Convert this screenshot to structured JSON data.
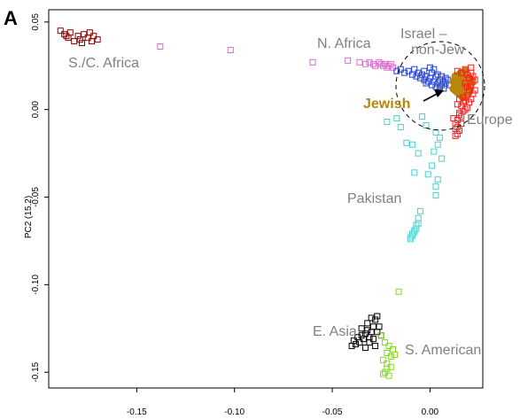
{
  "chart_data": {
    "type": "scatter",
    "panel_label": "A",
    "xlabel": "",
    "ylabel": "PC2 (15.2)",
    "xlim": [
      -0.195,
      0.027
    ],
    "ylim": [
      -0.159,
      0.057
    ],
    "xticks": [
      -0.15,
      -0.1,
      -0.05,
      0.0
    ],
    "xtick_labels": [
      "-0.15",
      "-0.10",
      "-0.05",
      "0.00"
    ],
    "yticks": [
      0.05,
      0.0,
      -0.05,
      -0.1,
      -0.15
    ],
    "ytick_labels": [
      "0.05",
      "0.00",
      "-0.05",
      "-0.10",
      "-0.15"
    ],
    "grid": false,
    "annotations": [
      "S./C. Africa",
      "N. Africa",
      "Israel – non-Jew",
      "Jewish",
      "Europe",
      "Pakistan",
      "E. Asia",
      "S. American"
    ],
    "series": [
      {
        "name": "S./C. Africa",
        "color": "#8b0000",
        "marker": "open-square",
        "x": [
          -0.189,
          -0.187,
          -0.185,
          -0.184,
          -0.182,
          -0.18,
          -0.179,
          -0.177,
          -0.175,
          -0.173,
          -0.172,
          -0.17,
          -0.186,
          -0.178,
          -0.174
        ],
        "y": [
          0.045,
          0.043,
          0.041,
          0.044,
          0.039,
          0.042,
          0.04,
          0.043,
          0.041,
          0.039,
          0.042,
          0.04,
          0.042,
          0.038,
          0.044
        ]
      },
      {
        "name": "N. Africa",
        "color": "#e066cc",
        "marker": "open-square",
        "x": [
          -0.138,
          -0.102,
          -0.06,
          -0.042,
          -0.036,
          -0.033,
          -0.031,
          -0.029,
          -0.028,
          -0.026,
          -0.025,
          -0.024,
          -0.023,
          -0.022,
          -0.021,
          -0.02,
          -0.019
        ],
        "y": [
          0.036,
          0.034,
          0.027,
          0.028,
          0.027,
          0.026,
          0.027,
          0.026,
          0.025,
          0.027,
          0.026,
          0.025,
          0.026,
          0.024,
          0.025,
          0.026,
          0.024
        ]
      },
      {
        "name": "Israel – non-Jew",
        "color": "#1e3fd0",
        "marker": "open-square",
        "x": [
          -0.017,
          -0.015,
          -0.013,
          -0.011,
          -0.009,
          -0.008,
          -0.007,
          -0.006,
          -0.005,
          -0.004,
          -0.003,
          -0.002,
          -0.001,
          0.0,
          0.001,
          0.002,
          0.003,
          0.004,
          0.005,
          0.006,
          0.007,
          0.008,
          0.009,
          0.01,
          -0.003,
          0.0,
          0.002,
          0.004,
          0.006,
          0.008,
          -0.002,
          0.001,
          0.003,
          0.005,
          0.007
        ],
        "y": [
          0.022,
          0.023,
          0.021,
          0.022,
          0.02,
          0.023,
          0.019,
          0.021,
          0.018,
          0.02,
          0.017,
          0.019,
          0.016,
          0.018,
          0.021,
          0.016,
          0.019,
          0.015,
          0.017,
          0.014,
          0.016,
          0.015,
          0.017,
          0.014,
          0.022,
          0.024,
          0.023,
          0.02,
          0.019,
          0.018,
          0.015,
          0.014,
          0.013,
          0.013,
          0.012
        ]
      },
      {
        "name": "Jewish",
        "color": "#b8860b",
        "marker": "filled-circle",
        "x": [
          0.012,
          0.013,
          0.014,
          0.015,
          0.016,
          0.017,
          0.018,
          0.019,
          0.02,
          0.021,
          0.013,
          0.015,
          0.017,
          0.019,
          0.021,
          0.014,
          0.016,
          0.018,
          0.02,
          0.015,
          0.017,
          0.019,
          0.012,
          0.014,
          0.016,
          0.018,
          0.016,
          0.018,
          0.017,
          0.015,
          0.013,
          0.018
        ],
        "y": [
          0.016,
          0.014,
          0.018,
          0.012,
          0.016,
          0.01,
          0.014,
          0.018,
          0.012,
          0.015,
          0.011,
          0.009,
          0.017,
          0.011,
          0.017,
          0.015,
          0.013,
          0.009,
          0.01,
          0.019,
          0.02,
          0.015,
          0.012,
          0.01,
          0.008,
          0.019,
          0.021,
          0.022,
          0.007,
          0.02,
          0.019,
          0.013
        ]
      },
      {
        "name": "Europe",
        "color": "#ff1a1a",
        "marker": "open-square",
        "x": [
          0.014,
          0.016,
          0.018,
          0.019,
          0.02,
          0.021,
          0.022,
          0.023,
          0.018,
          0.019,
          0.02,
          0.021,
          0.022,
          0.023,
          0.017,
          0.018,
          0.019,
          0.02,
          0.021,
          0.016,
          0.017,
          0.018,
          0.019,
          0.015,
          0.016,
          0.017,
          0.014,
          0.015,
          0.013,
          0.014,
          0.016,
          0.015,
          0.014,
          0.013,
          0.012,
          0.013,
          0.014,
          0.015,
          0.021,
          0.022
        ],
        "y": [
          0.022,
          0.021,
          0.023,
          0.02,
          0.018,
          0.021,
          0.019,
          0.017,
          0.015,
          0.013,
          0.011,
          0.013,
          0.009,
          0.011,
          0.007,
          0.005,
          0.008,
          0.004,
          0.006,
          0.002,
          0.004,
          0.0,
          0.001,
          -0.002,
          -0.004,
          -0.001,
          -0.006,
          -0.003,
          -0.008,
          -0.01,
          -0.008,
          -0.012,
          -0.014,
          -0.011,
          -0.005,
          -0.015,
          0.003,
          0.006,
          0.024,
          0.016
        ]
      },
      {
        "name": "Pakistan",
        "color": "#48d1cc",
        "marker": "open-square",
        "x": [
          -0.022,
          -0.017,
          -0.015,
          -0.012,
          -0.009,
          -0.006,
          -0.008,
          -0.004,
          -0.002,
          0.003,
          0.005,
          0.004,
          0.002,
          0.006,
          0.001,
          -0.001,
          0.004,
          0.003,
          0.003,
          -0.005,
          -0.006,
          -0.007,
          -0.008,
          -0.009,
          -0.01,
          -0.006,
          -0.008,
          -0.009,
          -0.007,
          -0.01
        ],
        "y": [
          -0.007,
          -0.005,
          -0.01,
          -0.019,
          -0.02,
          -0.025,
          -0.036,
          -0.004,
          -0.009,
          -0.013,
          -0.016,
          -0.02,
          -0.024,
          -0.028,
          -0.032,
          -0.037,
          -0.04,
          -0.044,
          -0.049,
          -0.058,
          -0.062,
          -0.066,
          -0.069,
          -0.071,
          -0.073,
          -0.065,
          -0.07,
          -0.072,
          -0.068,
          -0.074
        ]
      },
      {
        "name": "E. Asia",
        "color": "#000000",
        "marker": "open-square",
        "x": [
          -0.04,
          -0.039,
          -0.038,
          -0.037,
          -0.036,
          -0.035,
          -0.034,
          -0.033,
          -0.032,
          -0.031,
          -0.03,
          -0.029,
          -0.028,
          -0.027,
          -0.026,
          -0.033,
          -0.031,
          -0.029,
          -0.027,
          -0.035,
          -0.032,
          -0.03,
          -0.028,
          -0.025
        ],
        "y": [
          -0.135,
          -0.132,
          -0.134,
          -0.13,
          -0.133,
          -0.129,
          -0.131,
          -0.128,
          -0.126,
          -0.13,
          -0.127,
          -0.124,
          -0.12,
          -0.118,
          -0.124,
          -0.136,
          -0.133,
          -0.131,
          -0.127,
          -0.125,
          -0.122,
          -0.119,
          -0.135,
          -0.129
        ]
      },
      {
        "name": "S. American",
        "color": "#7fdd1a",
        "marker": "open-square",
        "x": [
          -0.016,
          -0.025,
          -0.023,
          -0.021,
          -0.019,
          -0.022,
          -0.02,
          -0.018,
          -0.024,
          -0.022,
          -0.02,
          -0.023,
          -0.021,
          -0.022,
          -0.024
        ],
        "y": [
          -0.104,
          -0.129,
          -0.133,
          -0.135,
          -0.137,
          -0.139,
          -0.141,
          -0.14,
          -0.143,
          -0.145,
          -0.147,
          -0.15,
          -0.152,
          -0.148,
          -0.151
        ]
      }
    ]
  }
}
